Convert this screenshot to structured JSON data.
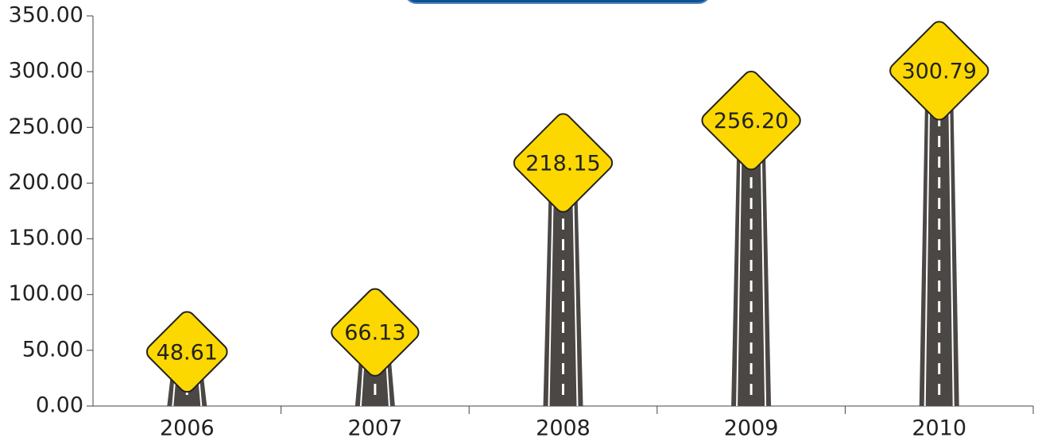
{
  "chart_data": {
    "type": "bar",
    "categories": [
      "2006",
      "2007",
      "2008",
      "2009",
      "2010"
    ],
    "values": [
      48.61,
      66.13,
      218.15,
      256.2,
      300.79
    ],
    "value_labels": [
      "48.61",
      "66.13",
      "218.15",
      "256.20",
      "300.79"
    ],
    "color": "#4a4745",
    "ylim": [
      0,
      350
    ],
    "yticks": [
      {
        "value": 0,
        "label": "0.00"
      },
      {
        "value": 50,
        "label": "50.00"
      },
      {
        "value": 100,
        "label": "100.00"
      },
      {
        "value": 150,
        "label": "150.00"
      },
      {
        "value": 200,
        "label": "200.00"
      },
      {
        "value": 250,
        "label": "250.00"
      },
      {
        "value": 300,
        "label": "300.00"
      },
      {
        "value": 350,
        "label": "350.00"
      }
    ],
    "grid": false
  }
}
